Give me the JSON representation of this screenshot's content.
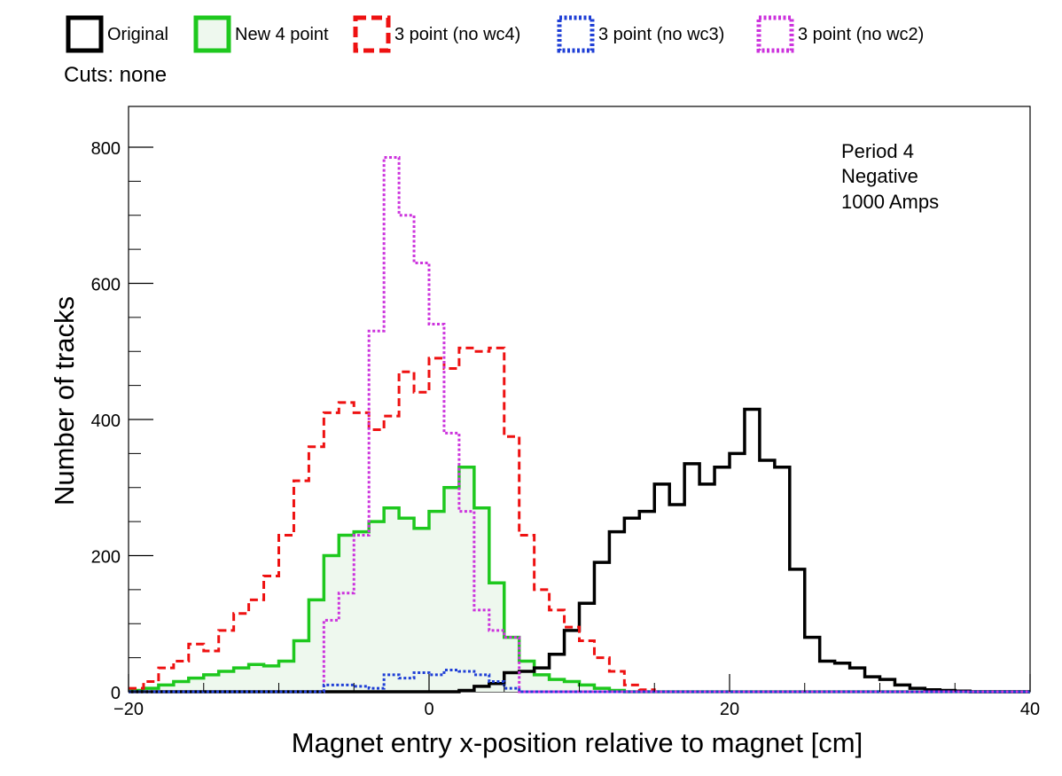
{
  "legend": [
    {
      "label": "Original",
      "color": "#000000",
      "style": "solid",
      "fill": false
    },
    {
      "label": "New 4 point",
      "color": "#1ec81e",
      "style": "solid",
      "fill": true,
      "fill_color": "#eef8ee"
    },
    {
      "label": "3 point (no wc4)",
      "color": "#ee1111",
      "style": "dashed",
      "fill": false
    },
    {
      "label": "3 point (no wc3)",
      "color": "#1f3fd6",
      "style": "dotted",
      "fill": false
    },
    {
      "label": "3 point (no wc2)",
      "color": "#cc33dd",
      "style": "dotted",
      "fill": false
    }
  ],
  "cuts_label": "Cuts: none",
  "annotations": [
    "Period 4",
    "Negative",
    "1000 Amps"
  ],
  "chart_data": {
    "type": "histogram",
    "title": "",
    "xlabel": "Magnet entry x-position relative to magnet [cm]",
    "ylabel": "Number of tracks",
    "xlim": [
      -20,
      40
    ],
    "ylim": [
      0,
      800
    ],
    "xticks": [
      "-20",
      "0",
      "20",
      "40"
    ],
    "yticks": [
      "0",
      "200",
      "400",
      "600",
      "800"
    ],
    "bin_width": 1,
    "bin_start": -20,
    "grid": false,
    "legend_position": "top, outside plot",
    "series": [
      {
        "name": "Original",
        "values": [
          0,
          0,
          0,
          0,
          0,
          0,
          0,
          0,
          0,
          0,
          0,
          0,
          0,
          0,
          0,
          0,
          0,
          0,
          0,
          0,
          0,
          0,
          2,
          8,
          12,
          28,
          30,
          35,
          55,
          90,
          130,
          190,
          235,
          255,
          265,
          305,
          275,
          335,
          305,
          330,
          350,
          415,
          340,
          330,
          180,
          80,
          45,
          42,
          35,
          22,
          18,
          10,
          5,
          3,
          2,
          1,
          0,
          0,
          0,
          0
        ]
      },
      {
        "name": "New 4 point",
        "values": [
          2,
          5,
          10,
          15,
          20,
          25,
          30,
          35,
          40,
          38,
          45,
          75,
          135,
          200,
          230,
          235,
          250,
          270,
          255,
          240,
          265,
          300,
          330,
          270,
          160,
          80,
          45,
          25,
          18,
          15,
          10,
          5,
          2,
          0,
          0,
          0,
          0,
          0,
          0,
          0,
          0,
          0,
          0,
          0,
          0,
          0,
          0,
          0,
          0,
          0,
          0,
          0,
          0,
          0,
          0,
          0,
          0,
          0,
          0,
          0
        ]
      },
      {
        "name": "3 point (no wc4)",
        "values": [
          5,
          15,
          35,
          45,
          70,
          60,
          90,
          115,
          135,
          170,
          230,
          310,
          360,
          410,
          425,
          410,
          385,
          405,
          470,
          440,
          490,
          475,
          505,
          500,
          505,
          375,
          230,
          150,
          120,
          95,
          75,
          50,
          30,
          10,
          3,
          0,
          0,
          0,
          0,
          0,
          0,
          0,
          0,
          0,
          0,
          0,
          0,
          0,
          0,
          0,
          0,
          0,
          0,
          0,
          0,
          0,
          0,
          0,
          0,
          0
        ]
      },
      {
        "name": "3 point (no wc3)",
        "values": [
          0,
          0,
          0,
          0,
          0,
          0,
          0,
          0,
          0,
          0,
          0,
          0,
          0,
          10,
          10,
          8,
          5,
          25,
          20,
          28,
          25,
          32,
          30,
          25,
          15,
          5,
          0,
          0,
          0,
          0,
          0,
          0,
          0,
          0,
          0,
          0,
          0,
          0,
          0,
          0,
          0,
          0,
          0,
          0,
          0,
          0,
          0,
          0,
          0,
          0,
          0,
          0,
          0,
          0,
          0,
          0,
          0,
          0,
          0,
          0
        ]
      },
      {
        "name": "3 point (no wc2)",
        "values": [
          0,
          0,
          0,
          0,
          0,
          0,
          0,
          0,
          0,
          0,
          0,
          0,
          0,
          105,
          145,
          230,
          530,
          785,
          700,
          630,
          540,
          380,
          265,
          120,
          90,
          80,
          0,
          0,
          0,
          0,
          0,
          0,
          0,
          0,
          0,
          0,
          0,
          0,
          0,
          0,
          0,
          0,
          0,
          0,
          0,
          0,
          0,
          0,
          0,
          0,
          0,
          0,
          0,
          0,
          0,
          0,
          0,
          0,
          0,
          0
        ]
      }
    ]
  }
}
